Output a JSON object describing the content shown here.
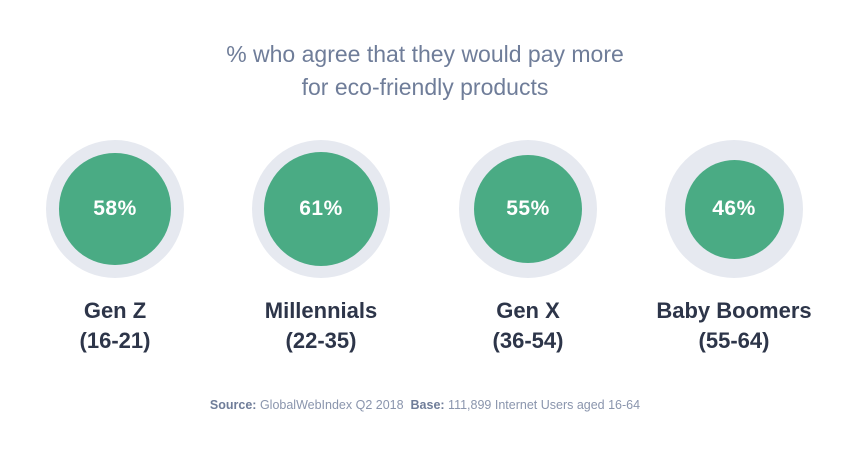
{
  "header": {
    "title_line1": "% who agree that they would pay more",
    "title_line2": "for eco-friendly products"
  },
  "chart_data": {
    "type": "bar",
    "title": "% who agree that they would pay more for eco-friendly products",
    "categories": [
      "Gen Z",
      "Millennials",
      "Gen X",
      "Baby Boomers"
    ],
    "subcategories": [
      "(16-21)",
      "(22-35)",
      "(36-54)",
      "(55-64)"
    ],
    "values": [
      58,
      61,
      55,
      46
    ],
    "value_labels": [
      "58%",
      "61%",
      "55%",
      "46%"
    ],
    "unit": "%"
  },
  "footer": {
    "source_label": "Source:",
    "source_text": "GlobalWebIndex Q2 2018",
    "base_label": "Base:",
    "base_text": "111,899 Internet Users aged 16-64"
  },
  "colors": {
    "fill": "#4aab84",
    "ring": "#e6e9f0",
    "title": "#6f7d99",
    "category": "#2d3549"
  }
}
